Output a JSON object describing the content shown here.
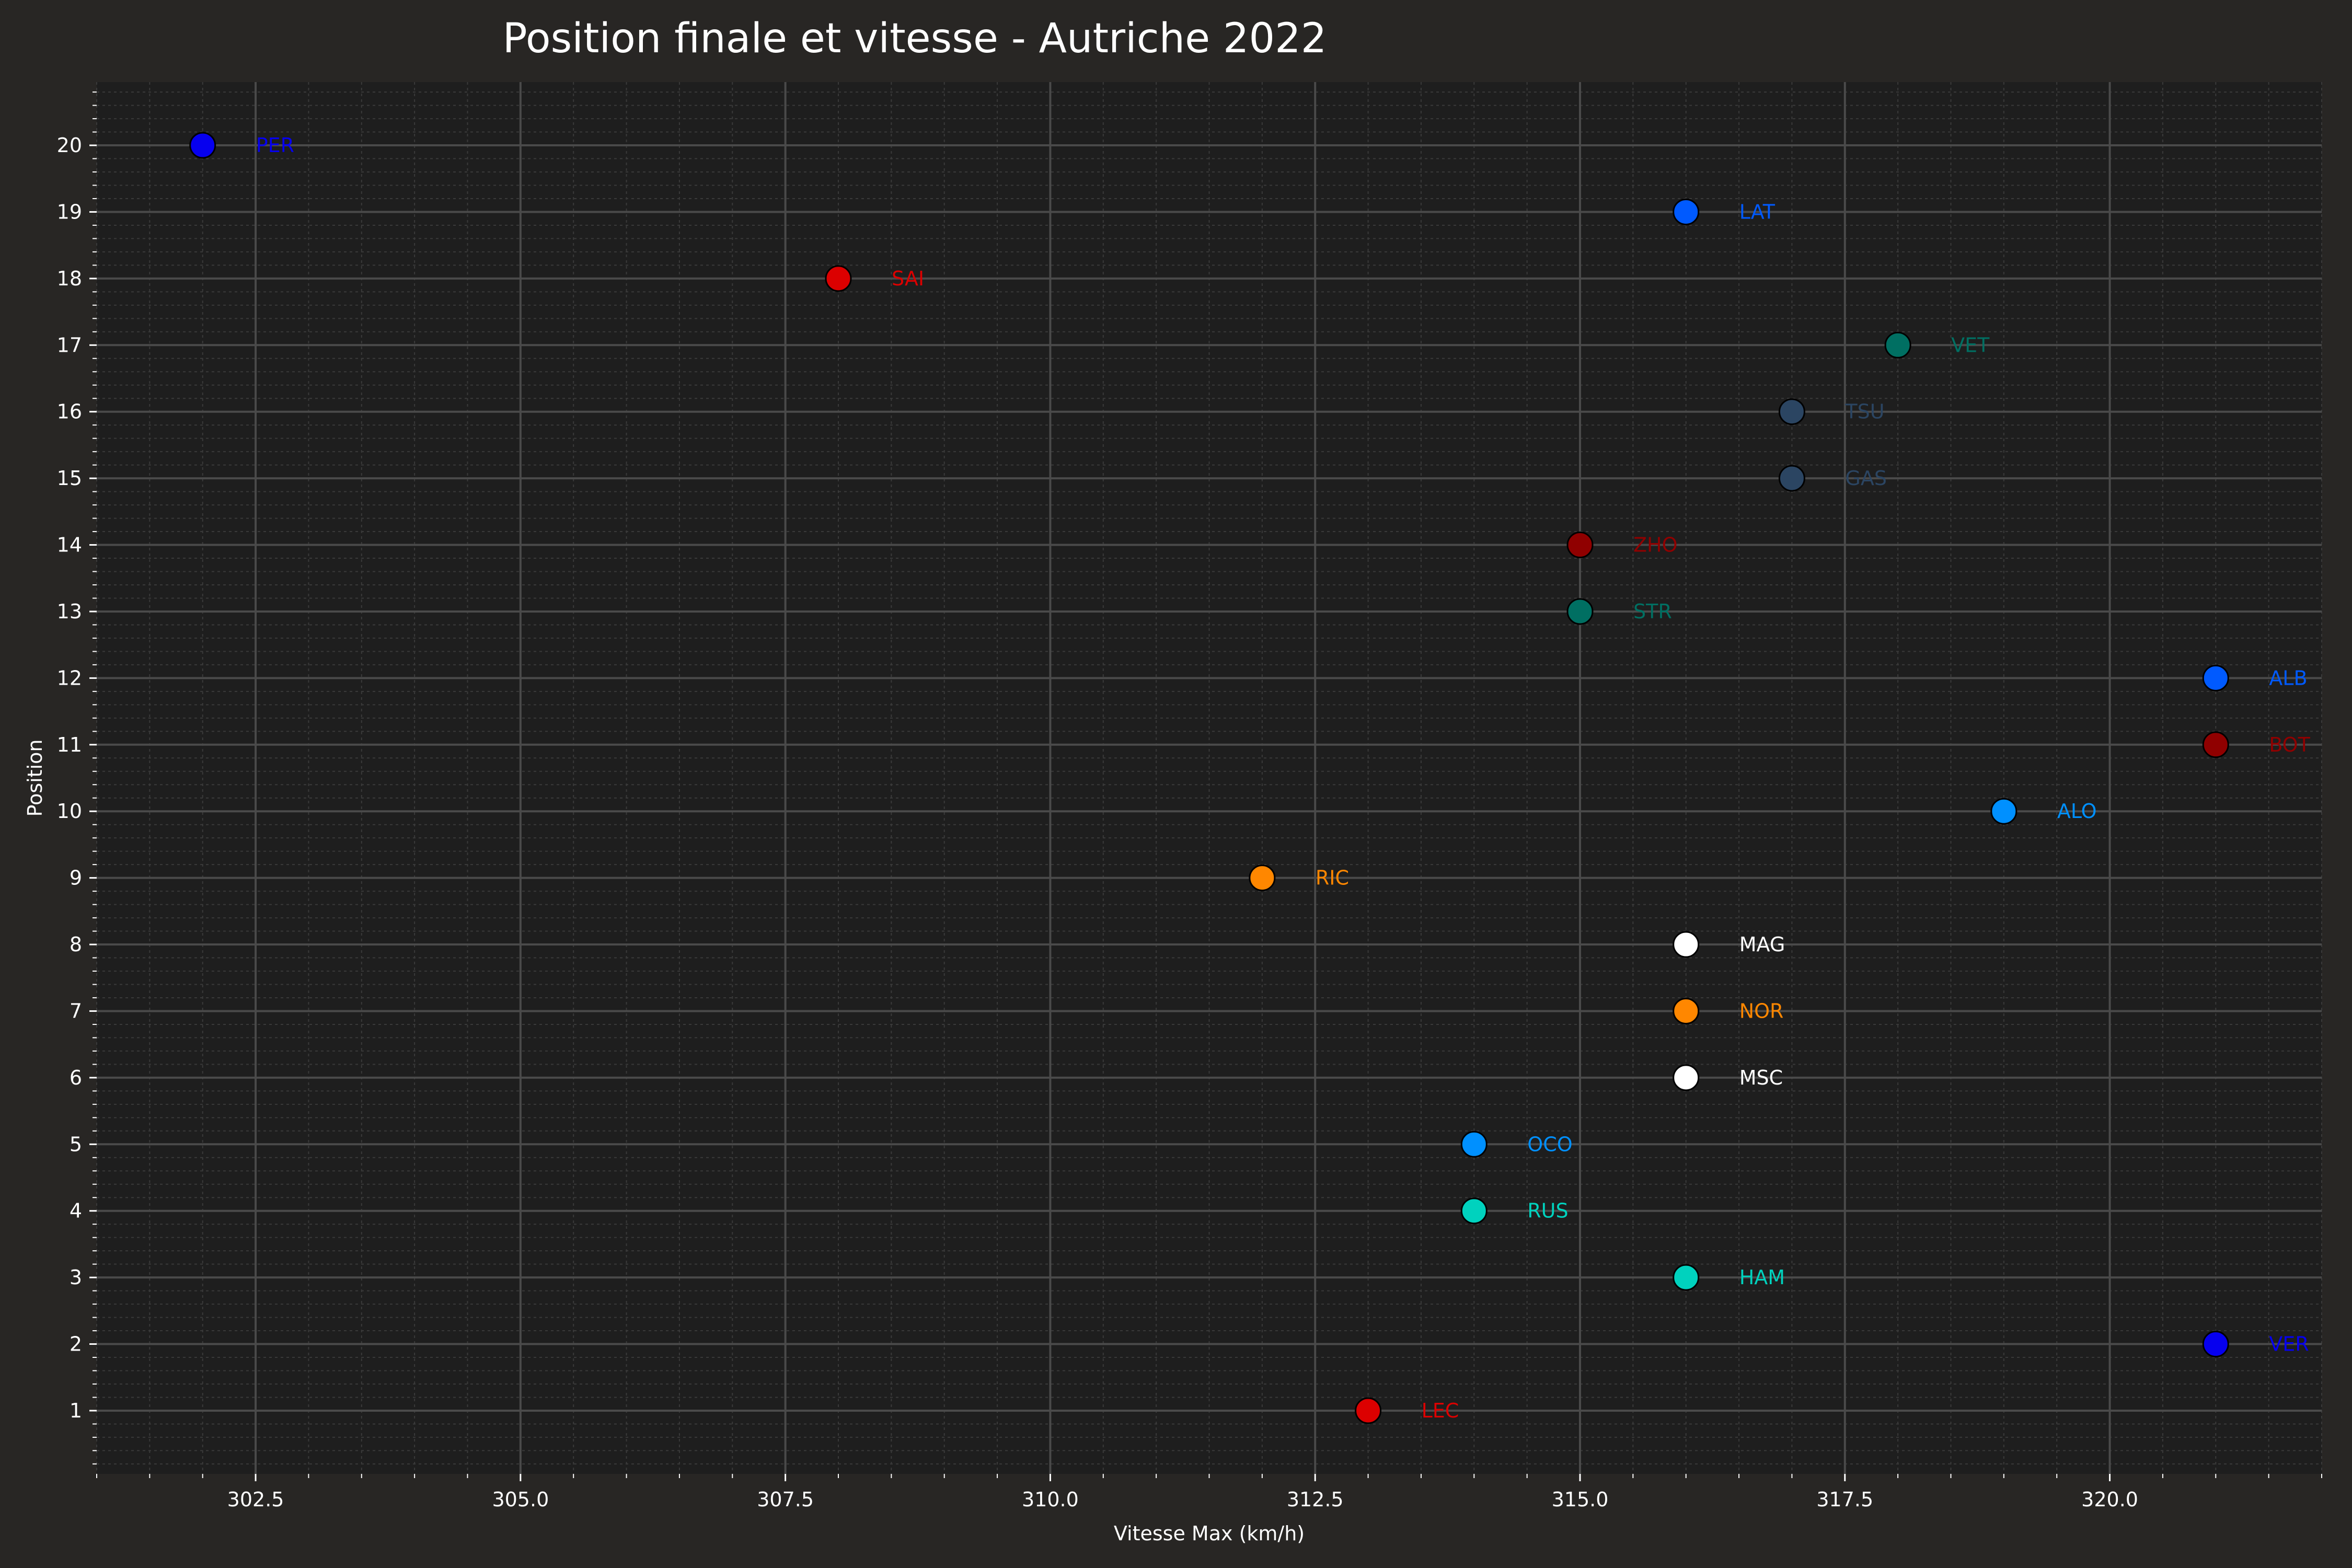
{
  "chart_data": {
    "type": "scatter",
    "title": "Position finale et vitesse - Autriche 2022",
    "xlabel": "Vitesse Max (km/h)",
    "ylabel": "Position",
    "xlim": [
      301.0,
      322.0
    ],
    "ylim": [
      0.05,
      20.95
    ],
    "x_ticks": [
      302.5,
      305.0,
      307.5,
      310.0,
      312.5,
      315.0,
      317.5,
      320.0
    ],
    "x_tick_labels": [
      "302.5",
      "305.0",
      "307.5",
      "310.0",
      "312.5",
      "315.0",
      "317.5",
      "320.0"
    ],
    "y_ticks": [
      1,
      2,
      3,
      4,
      5,
      6,
      7,
      8,
      9,
      10,
      11,
      12,
      13,
      14,
      15,
      16,
      17,
      18,
      19,
      20
    ],
    "y_tick_labels": [
      "1",
      "2",
      "3",
      "4",
      "5",
      "6",
      "7",
      "8",
      "9",
      "10",
      "11",
      "12",
      "13",
      "14",
      "15",
      "16",
      "17",
      "18",
      "19",
      "20"
    ],
    "grid": true,
    "minor_grid": true,
    "points": [
      {
        "label": "PER",
        "x": 302.0,
        "y": 20,
        "color": "#0600ef"
      },
      {
        "label": "LAT",
        "x": 316.0,
        "y": 19,
        "color": "#005aff"
      },
      {
        "label": "SAI",
        "x": 308.0,
        "y": 18,
        "color": "#dc0000"
      },
      {
        "label": "VET",
        "x": 318.0,
        "y": 17,
        "color": "#006f62"
      },
      {
        "label": "TSU",
        "x": 317.0,
        "y": 16,
        "color": "#2b4562"
      },
      {
        "label": "GAS",
        "x": 317.0,
        "y": 15,
        "color": "#2b4562"
      },
      {
        "label": "ZHO",
        "x": 315.0,
        "y": 14,
        "color": "#900000"
      },
      {
        "label": "STR",
        "x": 315.0,
        "y": 13,
        "color": "#006f62"
      },
      {
        "label": "ALB",
        "x": 321.0,
        "y": 12,
        "color": "#005aff"
      },
      {
        "label": "BOT",
        "x": 321.0,
        "y": 11,
        "color": "#900000"
      },
      {
        "label": "ALO",
        "x": 319.0,
        "y": 10,
        "color": "#0090ff"
      },
      {
        "label": "RIC",
        "x": 312.0,
        "y": 9,
        "color": "#ff8700"
      },
      {
        "label": "MAG",
        "x": 316.0,
        "y": 8,
        "color": "#ffffff"
      },
      {
        "label": "NOR",
        "x": 316.0,
        "y": 7,
        "color": "#ff8700"
      },
      {
        "label": "MSC",
        "x": 316.0,
        "y": 6,
        "color": "#ffffff"
      },
      {
        "label": "OCO",
        "x": 314.0,
        "y": 5,
        "color": "#0090ff"
      },
      {
        "label": "RUS",
        "x": 314.0,
        "y": 4,
        "color": "#00d2be"
      },
      {
        "label": "HAM",
        "x": 316.0,
        "y": 3,
        "color": "#00d2be"
      },
      {
        "label": "VER",
        "x": 321.0,
        "y": 2,
        "color": "#0600ef"
      },
      {
        "label": "LEC",
        "x": 313.0,
        "y": 1,
        "color": "#dc0000"
      }
    ],
    "colors": {
      "figure_background": "#282624",
      "plot_background": "#1e1e1e",
      "major_grid": "#4a4a4a",
      "minor_grid": "#3a3a3a",
      "text": "#ffffff"
    }
  }
}
